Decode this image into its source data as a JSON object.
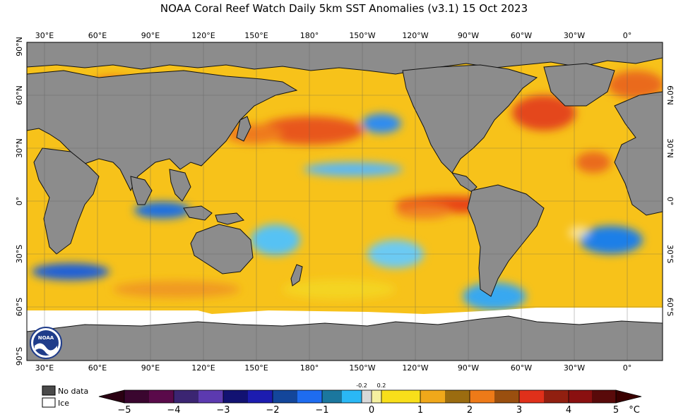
{
  "title": "NOAA Coral Reef Watch Daily 5km SST Anomalies  (v3.1)   15 Oct 2023",
  "map": {
    "lon_labels": [
      "30°E",
      "60°E",
      "90°E",
      "120°E",
      "150°E",
      "180°",
      "150°W",
      "120°W",
      "90°W",
      "60°W",
      "30°W",
      "0°"
    ],
    "lat_labels_left": [
      "90°N",
      "60°N",
      "30°N",
      "0°",
      "30°S",
      "60°S",
      "90°S"
    ],
    "lat_labels_right": [
      "60°N",
      "30°N",
      "0°",
      "30°S",
      "60°S"
    ]
  },
  "legend": {
    "no_data_label": "No data",
    "ice_label": "Ice",
    "no_data_color": "#4a4a4a",
    "ice_color": "#ffffff",
    "land_color": "#8c8c8c"
  },
  "colorbar": {
    "tick_labels": [
      "−5",
      "−4",
      "−3",
      "−2",
      "−1",
      "0",
      "1",
      "2",
      "3",
      "4",
      "5"
    ],
    "small_labels": [
      "-0.2",
      "0.2"
    ],
    "unit": "°C"
  },
  "logo": {
    "text": "NOAA"
  }
}
